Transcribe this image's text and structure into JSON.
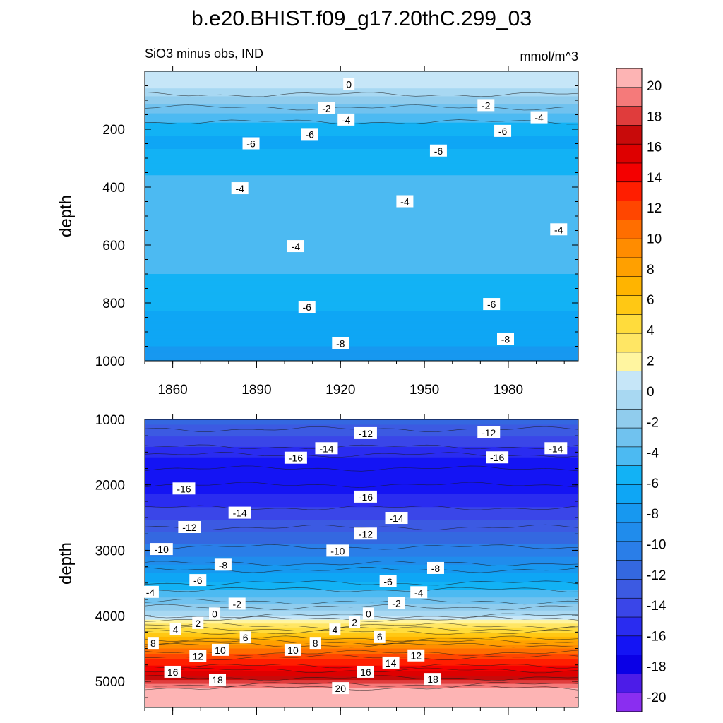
{
  "figure": {
    "title": "b.e20.BHIST.f09_g17.20thC.299_03",
    "subtitle_left": "SiO3 minus obs, IND",
    "subtitle_right": "mmol/m^3"
  },
  "chart_data": [
    {
      "type": "heatmap",
      "panel": "upper",
      "title": "SiO3 minus obs, IND",
      "units": "mmol/m^3",
      "xlabel": "",
      "ylabel": "depth",
      "xlim": [
        1850,
        2005
      ],
      "ylim": [
        0,
        1000
      ],
      "y_inverted": true,
      "x_ticks": [
        1860,
        1890,
        1920,
        1950,
        1980
      ],
      "y_ticks": [
        200,
        400,
        600,
        800,
        1000
      ],
      "depth_profile": [
        [
          0,
          0.5
        ],
        [
          60,
          0
        ],
        [
          100,
          -2
        ],
        [
          150,
          -4
        ],
        [
          200,
          -6
        ],
        [
          240,
          -6.5
        ],
        [
          300,
          -6
        ],
        [
          360,
          -5
        ],
        [
          400,
          -4
        ],
        [
          500,
          -3.8
        ],
        [
          600,
          -4
        ],
        [
          700,
          -5
        ],
        [
          800,
          -6
        ],
        [
          900,
          -7
        ],
        [
          1000,
          -8
        ]
      ],
      "contour_labels": [
        {
          "text": "0",
          "x": 1923,
          "y": 45
        },
        {
          "text": "-2",
          "x": 1915,
          "y": 128
        },
        {
          "text": "-2",
          "x": 1972,
          "y": 118
        },
        {
          "text": "-4",
          "x": 1922,
          "y": 168
        },
        {
          "text": "-4",
          "x": 1991,
          "y": 160
        },
        {
          "text": "-6",
          "x": 1909,
          "y": 218
        },
        {
          "text": "-6",
          "x": 1888,
          "y": 250
        },
        {
          "text": "-6",
          "x": 1978,
          "y": 207
        },
        {
          "text": "-6",
          "x": 1955,
          "y": 275
        },
        {
          "text": "-4",
          "x": 1884,
          "y": 405
        },
        {
          "text": "-4",
          "x": 1943,
          "y": 450
        },
        {
          "text": "-4",
          "x": 1998,
          "y": 547
        },
        {
          "text": "-4",
          "x": 1904,
          "y": 605
        },
        {
          "text": "-6",
          "x": 1908,
          "y": 815
        },
        {
          "text": "-6",
          "x": 1974,
          "y": 805
        },
        {
          "text": "-8",
          "x": 1920,
          "y": 940
        },
        {
          "text": "-8",
          "x": 1979,
          "y": 925
        }
      ]
    },
    {
      "type": "heatmap",
      "panel": "lower",
      "xlabel": "",
      "ylabel": "depth",
      "xlim": [
        1850,
        2005
      ],
      "ylim": [
        1000,
        5400
      ],
      "y_inverted": true,
      "y_ticks": [
        1000,
        2000,
        3000,
        4000,
        5000
      ],
      "depth_profile": [
        [
          1000,
          -12
        ],
        [
          1300,
          -14
        ],
        [
          1600,
          -16.5
        ],
        [
          1900,
          -17.5
        ],
        [
          2200,
          -16
        ],
        [
          2500,
          -14
        ],
        [
          2800,
          -12
        ],
        [
          3100,
          -10
        ],
        [
          3400,
          -7
        ],
        [
          3700,
          -4
        ],
        [
          3950,
          -1
        ],
        [
          4100,
          2
        ],
        [
          4300,
          6
        ],
        [
          4500,
          10
        ],
        [
          4700,
          13
        ],
        [
          4900,
          16
        ],
        [
          5000,
          18
        ],
        [
          5150,
          21
        ],
        [
          5400,
          21
        ]
      ],
      "contour_labels": [
        {
          "text": "-12",
          "x": 1929,
          "y": 1215
        },
        {
          "text": "-12",
          "x": 1973,
          "y": 1205
        },
        {
          "text": "-14",
          "x": 1915,
          "y": 1445
        },
        {
          "text": "-14",
          "x": 1997,
          "y": 1445
        },
        {
          "text": "-16",
          "x": 1904,
          "y": 1590
        },
        {
          "text": "-16",
          "x": 1976,
          "y": 1585
        },
        {
          "text": "-16",
          "x": 1864,
          "y": 2060
        },
        {
          "text": "-16",
          "x": 1929,
          "y": 2185
        },
        {
          "text": "-14",
          "x": 1884,
          "y": 2430
        },
        {
          "text": "-14",
          "x": 1940,
          "y": 2510
        },
        {
          "text": "-12",
          "x": 1866,
          "y": 2650
        },
        {
          "text": "-12",
          "x": 1929,
          "y": 2750
        },
        {
          "text": "-10",
          "x": 1856,
          "y": 2985
        },
        {
          "text": "-10",
          "x": 1919,
          "y": 3010
        },
        {
          "text": "-8",
          "x": 1878,
          "y": 3225
        },
        {
          "text": "-8",
          "x": 1954,
          "y": 3275
        },
        {
          "text": "-6",
          "x": 1869,
          "y": 3460
        },
        {
          "text": "-6",
          "x": 1937,
          "y": 3480
        },
        {
          "text": "-4",
          "x": 1852,
          "y": 3640
        },
        {
          "text": "-4",
          "x": 1948,
          "y": 3645
        },
        {
          "text": "-2",
          "x": 1883,
          "y": 3820
        },
        {
          "text": "-2",
          "x": 1940,
          "y": 3810
        },
        {
          "text": "0",
          "x": 1875,
          "y": 3970
        },
        {
          "text": "0",
          "x": 1930,
          "y": 3970
        },
        {
          "text": "2",
          "x": 1869,
          "y": 4115
        },
        {
          "text": "2",
          "x": 1925,
          "y": 4100
        },
        {
          "text": "4",
          "x": 1861,
          "y": 4210
        },
        {
          "text": "4",
          "x": 1918,
          "y": 4215
        },
        {
          "text": "6",
          "x": 1886,
          "y": 4335
        },
        {
          "text": "6",
          "x": 1934,
          "y": 4320
        },
        {
          "text": "8",
          "x": 1853,
          "y": 4420
        },
        {
          "text": "8",
          "x": 1911,
          "y": 4420
        },
        {
          "text": "10",
          "x": 1877,
          "y": 4525
        },
        {
          "text": "10",
          "x": 1903,
          "y": 4525
        },
        {
          "text": "12",
          "x": 1869,
          "y": 4620
        },
        {
          "text": "12",
          "x": 1947,
          "y": 4610
        },
        {
          "text": "14",
          "x": 1938,
          "y": 4720
        },
        {
          "text": "16",
          "x": 1860,
          "y": 4860
        },
        {
          "text": "16",
          "x": 1929,
          "y": 4860
        },
        {
          "text": "18",
          "x": 1876,
          "y": 4980
        },
        {
          "text": "18",
          "x": 1953,
          "y": 4970
        },
        {
          "text": "20",
          "x": 1920,
          "y": 5110
        }
      ]
    }
  ],
  "colorbar": {
    "labels": [
      "20",
      "18",
      "16",
      "14",
      "12",
      "10",
      "8",
      "6",
      "4",
      "2",
      "0",
      "-2",
      "-4",
      "-6",
      "-8",
      "-10",
      "-12",
      "-14",
      "-16",
      "-18",
      "-20"
    ],
    "colors": [
      "#fdb4b4",
      "#f57a7a",
      "#e03c3c",
      "#c80a0a",
      "#de0000",
      "#f40000",
      "#ff1e00",
      "#ff4600",
      "#ff6e00",
      "#ff8c00",
      "#ffa000",
      "#ffb400",
      "#ffc814",
      "#ffdc3c",
      "#ffe664",
      "#fff5a0",
      "#c6e6f8",
      "#a8d8f2",
      "#90cced",
      "#70c2ef",
      "#4cbaf2",
      "#12b2f5",
      "#0ea6f5",
      "#1798f0",
      "#208cec",
      "#2a7ee8",
      "#3468e0",
      "#3c5ae2",
      "#3a46e8",
      "#2a2cf0",
      "#1414f4",
      "#0a00e6",
      "#4c1ce8",
      "#8a2ef0"
    ]
  }
}
